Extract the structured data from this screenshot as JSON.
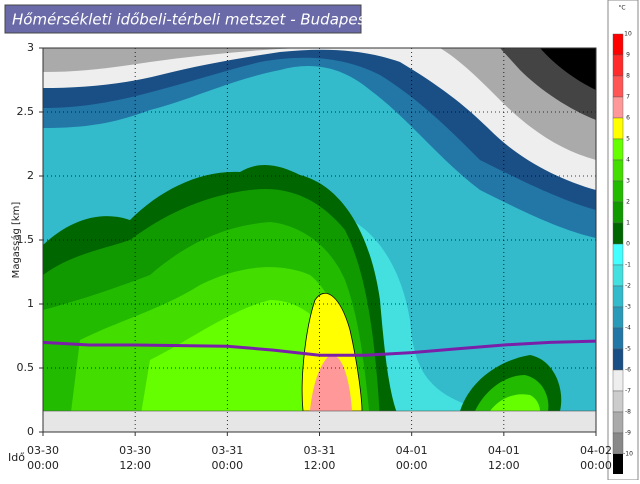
{
  "chart_data": {
    "type": "contour",
    "title": "Hőmérsékleti időbeli-térbeli metszet - Budapest",
    "ylabel": "Magasság [km]",
    "xlabel": "Idő",
    "xlim": [
      0,
      72
    ],
    "xticks": [
      {
        "value": 0,
        "label": "03-30",
        "sublabel": "00:00"
      },
      {
        "value": 12,
        "label": "03-30",
        "sublabel": "12:00"
      },
      {
        "value": 24,
        "label": "03-31",
        "sublabel": "00:00"
      },
      {
        "value": 36,
        "label": "03-31",
        "sublabel": "12:00"
      },
      {
        "value": 48,
        "label": "04-01",
        "sublabel": "00:00"
      },
      {
        "value": 60,
        "label": "04-01",
        "sublabel": "12:00"
      },
      {
        "value": 72,
        "label": "04-02",
        "sublabel": "00:00"
      }
    ],
    "ylim": [
      0,
      3
    ],
    "yticks": [
      0,
      0.5,
      1,
      1.5,
      2,
      2.5,
      3
    ],
    "grid": true,
    "line": {
      "color": "#7a1fa8",
      "x": [
        0,
        6,
        12,
        24,
        30,
        36,
        42,
        48,
        54,
        60,
        66,
        72
      ],
      "values": [
        0.7,
        0.68,
        0.68,
        0.67,
        0.64,
        0.6,
        0.6,
        0.62,
        0.65,
        0.68,
        0.7,
        0.71
      ]
    },
    "colorbar": {
      "unit": "°C",
      "ticks": [
        10,
        9,
        8,
        7,
        6,
        5,
        4,
        3,
        2,
        1,
        0,
        -1,
        -2,
        -3,
        -4,
        -5,
        -6,
        -7,
        -8,
        -9,
        -10
      ],
      "colors": [
        "#ff0000",
        "#ff2a2a",
        "#ff5555",
        "#ff9999",
        "#ffff00",
        "#66ff00",
        "#44dd00",
        "#22bb00",
        "#119900",
        "#006600",
        "#44ffff",
        "#44e0e0",
        "#33bbcc",
        "#2a9ab8",
        "#2277a6",
        "#1a4f86",
        "#eeeeee",
        "#cccccc",
        "#aaaaaa",
        "#888888"
      ]
    }
  }
}
